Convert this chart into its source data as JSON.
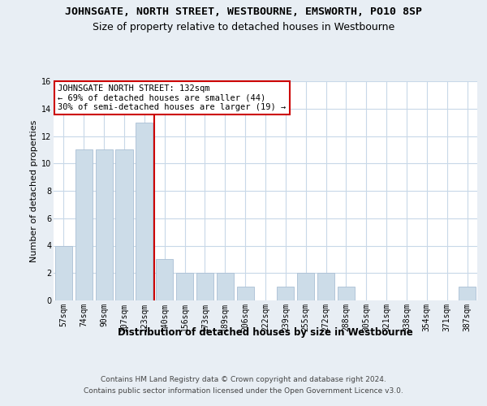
{
  "title": "JOHNSGATE, NORTH STREET, WESTBOURNE, EMSWORTH, PO10 8SP",
  "subtitle": "Size of property relative to detached houses in Westbourne",
  "xlabel": "Distribution of detached houses by size in Westbourne",
  "ylabel": "Number of detached properties",
  "categories": [
    "57sqm",
    "74sqm",
    "90sqm",
    "107sqm",
    "123sqm",
    "140sqm",
    "156sqm",
    "173sqm",
    "189sqm",
    "206sqm",
    "222sqm",
    "239sqm",
    "255sqm",
    "272sqm",
    "288sqm",
    "305sqm",
    "321sqm",
    "338sqm",
    "354sqm",
    "371sqm",
    "387sqm"
  ],
  "values": [
    4,
    11,
    11,
    11,
    13,
    3,
    2,
    2,
    2,
    1,
    0,
    1,
    2,
    2,
    1,
    0,
    0,
    0,
    0,
    0,
    1
  ],
  "bar_color": "#ccdce8",
  "bar_edge_color": "#aabfd4",
  "vline_x": 4.5,
  "vline_color": "#cc0000",
  "annotation_text": "JOHNSGATE NORTH STREET: 132sqm\n← 69% of detached houses are smaller (44)\n30% of semi-detached houses are larger (19) →",
  "annotation_box_color": "#ffffff",
  "annotation_box_edge_color": "#cc0000",
  "ylim": [
    0,
    16
  ],
  "yticks": [
    0,
    2,
    4,
    6,
    8,
    10,
    12,
    14,
    16
  ],
  "footer1": "Contains HM Land Registry data © Crown copyright and database right 2024.",
  "footer2": "Contains public sector information licensed under the Open Government Licence v3.0.",
  "background_color": "#e8eef4",
  "plot_background_color": "#ffffff",
  "grid_color": "#c8d8e8",
  "title_fontsize": 9.5,
  "subtitle_fontsize": 9,
  "xlabel_fontsize": 8.5,
  "ylabel_fontsize": 8,
  "tick_fontsize": 7,
  "annotation_fontsize": 7.5,
  "footer_fontsize": 6.5
}
